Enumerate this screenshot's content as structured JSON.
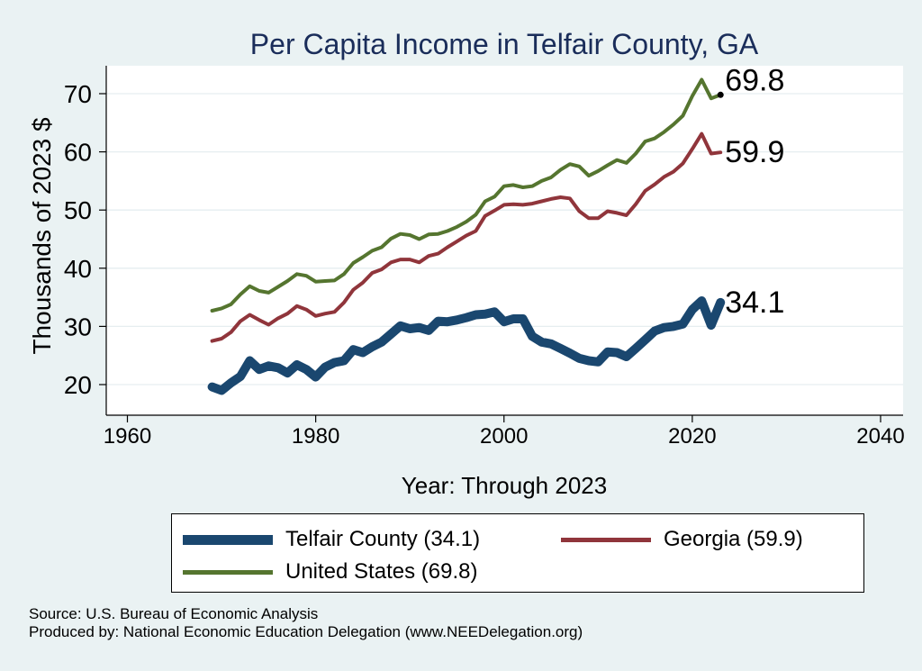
{
  "chart_data": {
    "type": "line",
    "title": "Per Capita Income in Telfair County, GA",
    "xlabel": "Year: Through 2023",
    "ylabel": "Thousands of 2023 $",
    "xlim": [
      1960,
      2040
    ],
    "ylim": [
      20,
      70
    ],
    "xticks": [
      "1960",
      "1980",
      "2000",
      "2020",
      "2040"
    ],
    "yticks": [
      "20",
      "30",
      "40",
      "50",
      "60",
      "70"
    ],
    "grid": true,
    "legend_position": "bottom",
    "x": [
      1969,
      1970,
      1971,
      1972,
      1973,
      1974,
      1975,
      1976,
      1977,
      1978,
      1979,
      1980,
      1981,
      1982,
      1983,
      1984,
      1985,
      1986,
      1987,
      1988,
      1989,
      1990,
      1991,
      1992,
      1993,
      1994,
      1995,
      1996,
      1997,
      1998,
      1999,
      2000,
      2001,
      2002,
      2003,
      2004,
      2005,
      2006,
      2007,
      2008,
      2009,
      2010,
      2011,
      2012,
      2013,
      2014,
      2015,
      2016,
      2017,
      2018,
      2019,
      2020,
      2021,
      2022,
      2023
    ],
    "series": [
      {
        "name": "Telfair County (34.1)",
        "color": "#1a476f",
        "end_label": "34.1",
        "values": [
          19.6,
          19.0,
          20.3,
          21.4,
          24.1,
          22.6,
          23.2,
          22.9,
          22.0,
          23.4,
          22.6,
          21.3,
          23.0,
          23.8,
          24.1,
          26.0,
          25.5,
          26.5,
          27.3,
          28.7,
          30.1,
          29.6,
          29.8,
          29.3,
          30.9,
          30.8,
          31.1,
          31.5,
          32.0,
          32.1,
          32.5,
          30.8,
          31.3,
          31.3,
          28.3,
          27.3,
          27.0,
          26.2,
          25.4,
          24.5,
          24.1,
          23.9,
          25.6,
          25.5,
          24.8,
          26.2,
          27.7,
          29.2,
          29.8,
          30.0,
          30.4,
          32.9,
          34.4,
          30.2,
          34.1
        ]
      },
      {
        "name": "Georgia (59.9)",
        "color": "#90353b",
        "end_label": "59.9",
        "values": [
          27.5,
          27.9,
          29.0,
          30.9,
          32.0,
          31.1,
          30.3,
          31.4,
          32.2,
          33.5,
          32.9,
          31.8,
          32.2,
          32.5,
          34.1,
          36.3,
          37.5,
          39.2,
          39.8,
          41.0,
          41.5,
          41.5,
          41.0,
          42.1,
          42.5,
          43.6,
          44.6,
          45.6,
          46.4,
          49.0,
          49.9,
          50.9,
          51.0,
          50.9,
          51.1,
          51.5,
          51.9,
          52.2,
          52.0,
          49.8,
          48.6,
          48.6,
          49.8,
          49.5,
          49.1,
          51.0,
          53.3,
          54.4,
          55.7,
          56.6,
          58.0,
          60.5,
          63.1,
          59.7,
          59.9
        ]
      },
      {
        "name": "United States (69.8)",
        "color": "#55752f",
        "end_label": "69.8",
        "values": [
          32.7,
          33.1,
          33.8,
          35.5,
          36.9,
          36.1,
          35.8,
          36.8,
          37.8,
          39.0,
          38.7,
          37.7,
          37.8,
          37.9,
          39.0,
          40.9,
          41.9,
          43.0,
          43.6,
          45.1,
          45.9,
          45.7,
          45.0,
          45.8,
          45.9,
          46.4,
          47.1,
          48.0,
          49.2,
          51.5,
          52.3,
          54.1,
          54.3,
          53.9,
          54.1,
          55.0,
          55.6,
          56.9,
          57.9,
          57.5,
          55.9,
          56.7,
          57.7,
          58.6,
          58.1,
          59.7,
          61.8,
          62.3,
          63.4,
          64.7,
          66.2,
          69.6,
          72.4,
          69.2,
          69.8
        ]
      }
    ]
  },
  "footnotes": {
    "source": "Source: U.S. Bureau of Economic Analysis",
    "produced_by": "Produced by: National Economic Education Delegation (www.NEEDelegation.org)"
  }
}
